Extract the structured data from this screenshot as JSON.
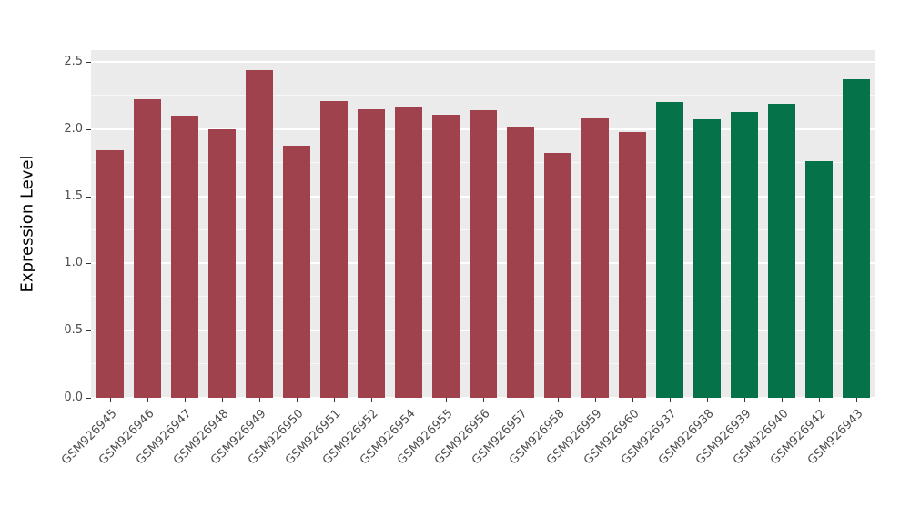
{
  "chart_data": {
    "type": "bar",
    "title": "",
    "xlabel": "",
    "ylabel": "Expression Level",
    "ylim": [
      0,
      2.5
    ],
    "yticks": [
      0.0,
      0.5,
      1.0,
      1.5,
      2.0,
      2.5
    ],
    "grid": "on",
    "legend": "none",
    "panel_background": "#EBEBEB",
    "palette": {
      "maroon": "#A0424E",
      "green": "#06724A"
    },
    "bars": [
      {
        "label": "GSM926945",
        "value": 1.84,
        "group": "maroon"
      },
      {
        "label": "GSM926946",
        "value": 2.22,
        "group": "maroon"
      },
      {
        "label": "GSM926947",
        "value": 2.1,
        "group": "maroon"
      },
      {
        "label": "GSM926948",
        "value": 2.0,
        "group": "maroon"
      },
      {
        "label": "GSM926949",
        "value": 2.44,
        "group": "maroon"
      },
      {
        "label": "GSM926950",
        "value": 1.88,
        "group": "maroon"
      },
      {
        "label": "GSM926951",
        "value": 2.21,
        "group": "maroon"
      },
      {
        "label": "GSM926952",
        "value": 2.15,
        "group": "maroon"
      },
      {
        "label": "GSM926954",
        "value": 2.17,
        "group": "maroon"
      },
      {
        "label": "GSM926955",
        "value": 2.11,
        "group": "maroon"
      },
      {
        "label": "GSM926956",
        "value": 2.14,
        "group": "maroon"
      },
      {
        "label": "GSM926957",
        "value": 2.01,
        "group": "maroon"
      },
      {
        "label": "GSM926958",
        "value": 1.82,
        "group": "maroon"
      },
      {
        "label": "GSM926959",
        "value": 2.08,
        "group": "maroon"
      },
      {
        "label": "GSM926960",
        "value": 1.98,
        "group": "maroon"
      },
      {
        "label": "GSM926937",
        "value": 2.2,
        "group": "green"
      },
      {
        "label": "GSM926938",
        "value": 2.07,
        "group": "green"
      },
      {
        "label": "GSM926939",
        "value": 2.13,
        "group": "green"
      },
      {
        "label": "GSM926940",
        "value": 2.19,
        "group": "green"
      },
      {
        "label": "GSM926942",
        "value": 1.76,
        "group": "green"
      },
      {
        "label": "GSM926943",
        "value": 2.37,
        "group": "green"
      }
    ]
  }
}
